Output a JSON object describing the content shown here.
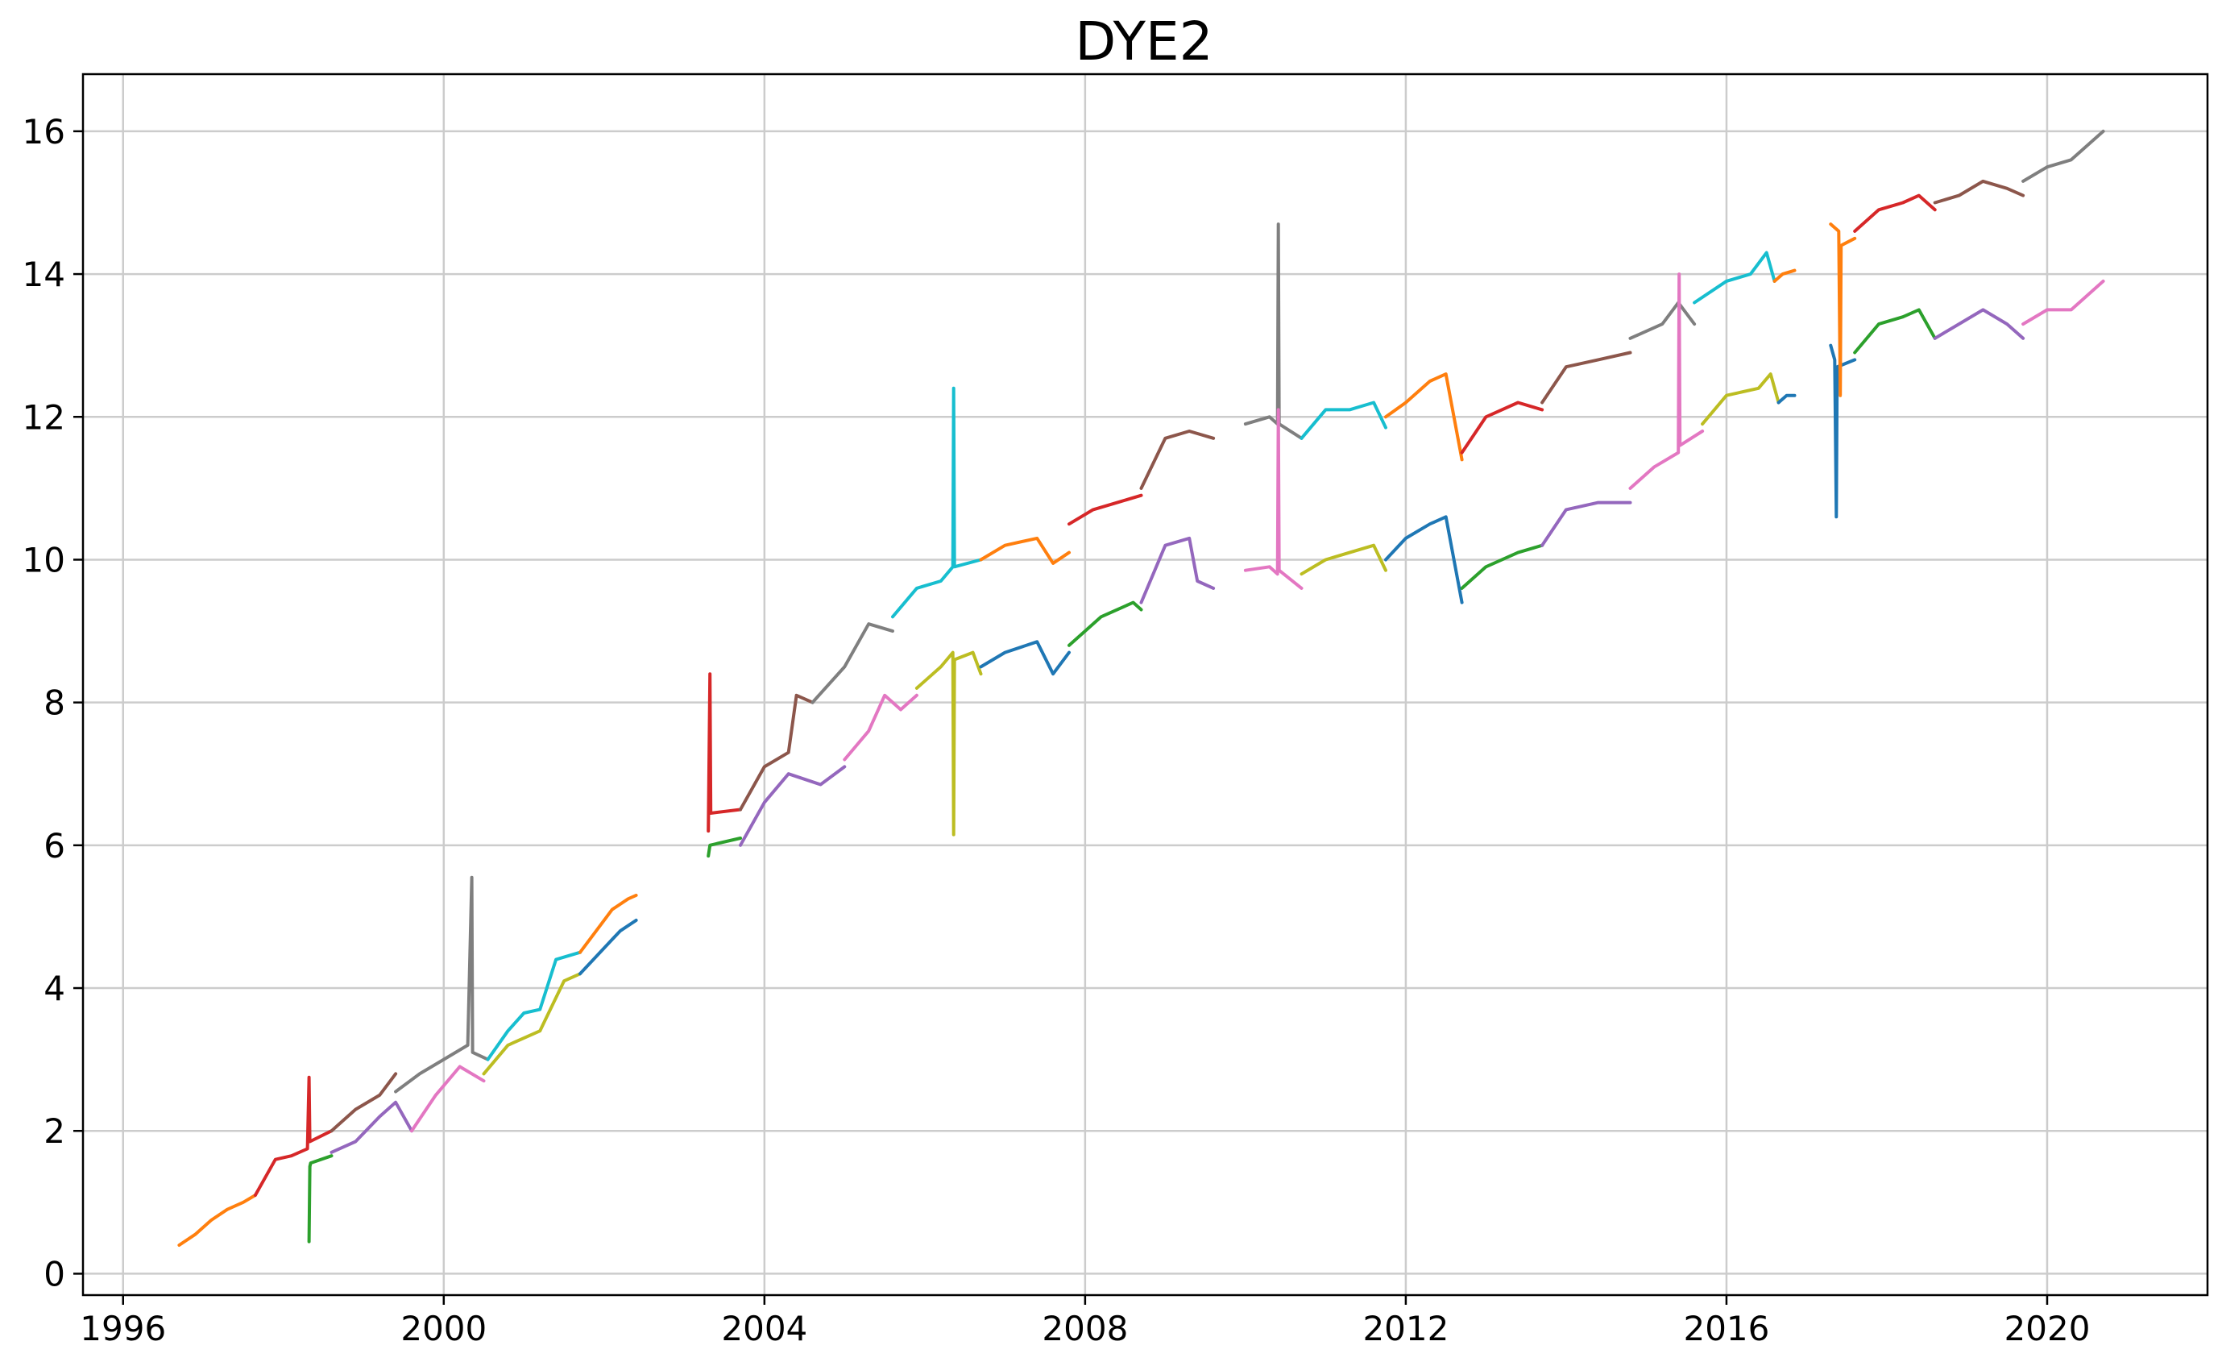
{
  "chart_data": {
    "type": "line",
    "title": "DYE2",
    "xlabel": "",
    "ylabel": "",
    "xlim": [
      1995.5,
      2022.0
    ],
    "ylim": [
      -0.3,
      16.8
    ],
    "xticks": [
      1996,
      2000,
      2004,
      2008,
      2012,
      2016,
      2020
    ],
    "yticks": [
      0,
      2,
      4,
      6,
      8,
      10,
      12,
      14,
      16
    ],
    "grid": true,
    "legend": "none",
    "series": [
      {
        "color": "#ff7f0e",
        "x": [
          1996.7,
          1996.9,
          1997.1,
          1997.3,
          1997.5,
          1997.65
        ],
        "y": [
          0.4,
          0.55,
          0.75,
          0.9,
          1.0,
          1.1
        ]
      },
      {
        "color": "#d62728",
        "x": [
          1997.65,
          1997.9,
          1998.1,
          1998.3,
          1998.32,
          1998.33,
          1998.6
        ],
        "y": [
          1.1,
          1.6,
          1.65,
          1.75,
          2.75,
          1.85,
          2.0
        ]
      },
      {
        "color": "#8c564b",
        "x": [
          1998.6,
          1998.9,
          1999.2,
          1999.4
        ],
        "y": [
          2.0,
          2.3,
          2.5,
          2.8
        ]
      },
      {
        "color": "#7f7f7f",
        "x": [
          1999.4,
          1999.7,
          2000.0,
          2000.3,
          2000.35,
          2000.36,
          2000.55
        ],
        "y": [
          2.55,
          2.8,
          3.0,
          3.2,
          5.55,
          3.1,
          3.0
        ]
      },
      {
        "color": "#17becf",
        "x": [
          2000.55,
          2000.8,
          2001.0,
          2001.2,
          2001.4,
          2001.7
        ],
        "y": [
          3.0,
          3.4,
          3.65,
          3.7,
          4.4,
          4.5
        ]
      },
      {
        "color": "#ff7f0e",
        "x": [
          2001.7,
          2001.9,
          2002.1,
          2002.3,
          2002.4
        ],
        "y": [
          4.5,
          4.8,
          5.1,
          5.25,
          5.3
        ]
      },
      {
        "color": "#2ca02c",
        "x": [
          1998.32,
          1998.33,
          1998.34,
          1998.6
        ],
        "y": [
          0.45,
          1.5,
          1.55,
          1.65
        ]
      },
      {
        "color": "#9467bd",
        "x": [
          1998.6,
          1998.9,
          1999.2,
          1999.4,
          1999.6
        ],
        "y": [
          1.7,
          1.85,
          2.2,
          2.4,
          2.0
        ]
      },
      {
        "color": "#e377c2",
        "x": [
          1999.6,
          1999.9,
          2000.2,
          2000.5
        ],
        "y": [
          2.0,
          2.5,
          2.9,
          2.7
        ]
      },
      {
        "color": "#bcbd22",
        "x": [
          2000.5,
          2000.8,
          2001.2,
          2001.5,
          2001.7
        ],
        "y": [
          2.8,
          3.2,
          3.4,
          4.1,
          4.2
        ]
      },
      {
        "color": "#1f77b4",
        "x": [
          2001.7,
          2001.95,
          2002.2,
          2002.4
        ],
        "y": [
          4.2,
          4.5,
          4.8,
          4.95
        ]
      },
      {
        "color": "#d62728",
        "x": [
          2003.3,
          2003.32,
          2003.33,
          2003.7
        ],
        "y": [
          6.2,
          8.4,
          6.45,
          6.5
        ]
      },
      {
        "color": "#8c564b",
        "x": [
          2003.7,
          2004.0,
          2004.3,
          2004.4,
          2004.6
        ],
        "y": [
          6.5,
          7.1,
          7.3,
          8.1,
          8.0
        ]
      },
      {
        "color": "#7f7f7f",
        "x": [
          2004.6,
          2005.0,
          2005.3,
          2005.6
        ],
        "y": [
          8.0,
          8.5,
          9.1,
          9.0
        ]
      },
      {
        "color": "#17becf",
        "x": [
          2005.6,
          2005.9,
          2006.2,
          2006.35,
          2006.36,
          2006.37,
          2006.7
        ],
        "y": [
          9.2,
          9.6,
          9.7,
          9.9,
          12.4,
          9.9,
          10.0
        ]
      },
      {
        "color": "#ff7f0e",
        "x": [
          2006.7,
          2007.0,
          2007.4,
          2007.6,
          2007.8
        ],
        "y": [
          10.0,
          10.2,
          10.3,
          9.95,
          10.1
        ]
      },
      {
        "color": "#d62728",
        "x": [
          2007.8,
          2008.1,
          2008.4,
          2008.7
        ],
        "y": [
          10.5,
          10.7,
          10.8,
          10.9
        ]
      },
      {
        "color": "#8c564b",
        "x": [
          2008.7,
          2009.0,
          2009.3,
          2009.6
        ],
        "y": [
          11.0,
          11.7,
          11.8,
          11.7
        ]
      },
      {
        "color": "#2ca02c",
        "x": [
          2003.3,
          2003.32,
          2003.7
        ],
        "y": [
          5.85,
          6.0,
          6.1
        ]
      },
      {
        "color": "#9467bd",
        "x": [
          2003.7,
          2004.0,
          2004.3,
          2004.7,
          2005.0
        ],
        "y": [
          6.0,
          6.6,
          7.0,
          6.85,
          7.1
        ]
      },
      {
        "color": "#e377c2",
        "x": [
          2005.0,
          2005.3,
          2005.5,
          2005.7,
          2005.9
        ],
        "y": [
          7.2,
          7.6,
          8.1,
          7.9,
          8.1
        ]
      },
      {
        "color": "#bcbd22",
        "x": [
          2005.9,
          2006.2,
          2006.35,
          2006.36,
          2006.37,
          2006.6,
          2006.7
        ],
        "y": [
          8.2,
          8.5,
          8.7,
          6.15,
          8.6,
          8.7,
          8.4
        ]
      },
      {
        "color": "#1f77b4",
        "x": [
          2006.7,
          2007.0,
          2007.4,
          2007.6,
          2007.8
        ],
        "y": [
          8.5,
          8.7,
          8.85,
          8.4,
          8.7
        ]
      },
      {
        "color": "#2ca02c",
        "x": [
          2007.8,
          2008.2,
          2008.6,
          2008.7
        ],
        "y": [
          8.8,
          9.2,
          9.4,
          9.3
        ]
      },
      {
        "color": "#9467bd",
        "x": [
          2008.7,
          2009.0,
          2009.3,
          2009.4,
          2009.6
        ],
        "y": [
          9.4,
          10.2,
          10.3,
          9.7,
          9.6
        ]
      },
      {
        "color": "#7f7f7f",
        "x": [
          2010.0,
          2010.3,
          2010.4,
          2010.41,
          2010.42,
          2010.7
        ],
        "y": [
          11.9,
          12.0,
          11.9,
          14.7,
          11.9,
          11.7
        ]
      },
      {
        "color": "#17becf",
        "x": [
          2010.7,
          2011.0,
          2011.3,
          2011.6,
          2011.75
        ],
        "y": [
          11.7,
          12.1,
          12.1,
          12.2,
          11.85
        ]
      },
      {
        "color": "#ff7f0e",
        "x": [
          2011.75,
          2012.0,
          2012.3,
          2012.5,
          2012.7
        ],
        "y": [
          12.0,
          12.2,
          12.5,
          12.6,
          11.4
        ]
      },
      {
        "color": "#d62728",
        "x": [
          2012.7,
          2013.0,
          2013.4,
          2013.7
        ],
        "y": [
          11.5,
          12.0,
          12.2,
          12.1
        ]
      },
      {
        "color": "#8c564b",
        "x": [
          2013.7,
          2014.0,
          2014.4,
          2014.8
        ],
        "y": [
          12.2,
          12.7,
          12.8,
          12.9
        ]
      },
      {
        "color": "#7f7f7f",
        "x": [
          2014.8,
          2015.2,
          2015.4,
          2015.6
        ],
        "y": [
          13.1,
          13.3,
          13.6,
          13.3
        ]
      },
      {
        "color": "#17becf",
        "x": [
          2015.6,
          2016.0,
          2016.3,
          2016.5,
          2016.6
        ],
        "y": [
          13.6,
          13.9,
          14.0,
          14.3,
          13.9
        ]
      },
      {
        "color": "#ff7f0e",
        "x": [
          2016.6,
          2016.7,
          2016.85
        ],
        "y": [
          13.9,
          14.0,
          14.05
        ]
      },
      {
        "color": "#e377c2",
        "x": [
          2010.0,
          2010.3,
          2010.4,
          2010.41,
          2010.42,
          2010.7
        ],
        "y": [
          9.85,
          9.9,
          9.8,
          12.1,
          9.85,
          9.6
        ]
      },
      {
        "color": "#bcbd22",
        "x": [
          2010.7,
          2011.0,
          2011.3,
          2011.6,
          2011.75
        ],
        "y": [
          9.8,
          10.0,
          10.1,
          10.2,
          9.85
        ]
      },
      {
        "color": "#1f77b4",
        "x": [
          2011.75,
          2012.0,
          2012.3,
          2012.5,
          2012.7
        ],
        "y": [
          10.0,
          10.3,
          10.5,
          10.6,
          9.4
        ]
      },
      {
        "color": "#2ca02c",
        "x": [
          2012.7,
          2013.0,
          2013.4,
          2013.7
        ],
        "y": [
          9.6,
          9.9,
          10.1,
          10.2
        ]
      },
      {
        "color": "#9467bd",
        "x": [
          2013.7,
          2014.0,
          2014.4,
          2014.8
        ],
        "y": [
          10.2,
          10.7,
          10.8,
          10.8
        ]
      },
      {
        "color": "#e377c2",
        "x": [
          2014.8,
          2015.1,
          2015.4,
          2015.41,
          2015.42,
          2015.7
        ],
        "y": [
          11.0,
          11.3,
          11.5,
          14.0,
          11.6,
          11.8
        ]
      },
      {
        "color": "#bcbd22",
        "x": [
          2015.7,
          2016.0,
          2016.4,
          2016.55,
          2016.65
        ],
        "y": [
          11.9,
          12.3,
          12.4,
          12.6,
          12.2
        ]
      },
      {
        "color": "#1f77b4",
        "x": [
          2016.65,
          2016.75,
          2016.85
        ],
        "y": [
          12.2,
          12.3,
          12.3
        ]
      },
      {
        "color": "#1f77b4",
        "x": [
          2017.3,
          2017.35,
          2017.37,
          2017.38,
          2017.6
        ],
        "y": [
          13.0,
          12.8,
          10.6,
          12.7,
          12.8
        ]
      },
      {
        "color": "#ff7f0e",
        "x": [
          2017.3,
          2017.4,
          2017.42,
          2017.43,
          2017.6
        ],
        "y": [
          14.7,
          14.6,
          12.3,
          14.4,
          14.5
        ]
      },
      {
        "color": "#2ca02c",
        "x": [
          2017.6,
          2017.9,
          2018.2,
          2018.4,
          2018.6
        ],
        "y": [
          12.9,
          13.3,
          13.4,
          13.5,
          13.1
        ]
      },
      {
        "color": "#d62728",
        "x": [
          2017.6,
          2017.9,
          2018.2,
          2018.4,
          2018.6
        ],
        "y": [
          14.6,
          14.9,
          15.0,
          15.1,
          14.9
        ]
      },
      {
        "color": "#9467bd",
        "x": [
          2018.6,
          2018.9,
          2019.2,
          2019.5,
          2019.7
        ],
        "y": [
          13.1,
          13.3,
          13.5,
          13.3,
          13.1
        ]
      },
      {
        "color": "#8c564b",
        "x": [
          2018.6,
          2018.9,
          2019.2,
          2019.5,
          2019.7
        ],
        "y": [
          15.0,
          15.1,
          15.3,
          15.2,
          15.1
        ]
      },
      {
        "color": "#e377c2",
        "x": [
          2019.7,
          2020.0,
          2020.3,
          2020.7
        ],
        "y": [
          13.3,
          13.5,
          13.5,
          13.9
        ]
      },
      {
        "color": "#7f7f7f",
        "x": [
          2019.7,
          2020.0,
          2020.3,
          2020.7
        ],
        "y": [
          15.3,
          15.5,
          15.6,
          16.0
        ]
      }
    ]
  }
}
